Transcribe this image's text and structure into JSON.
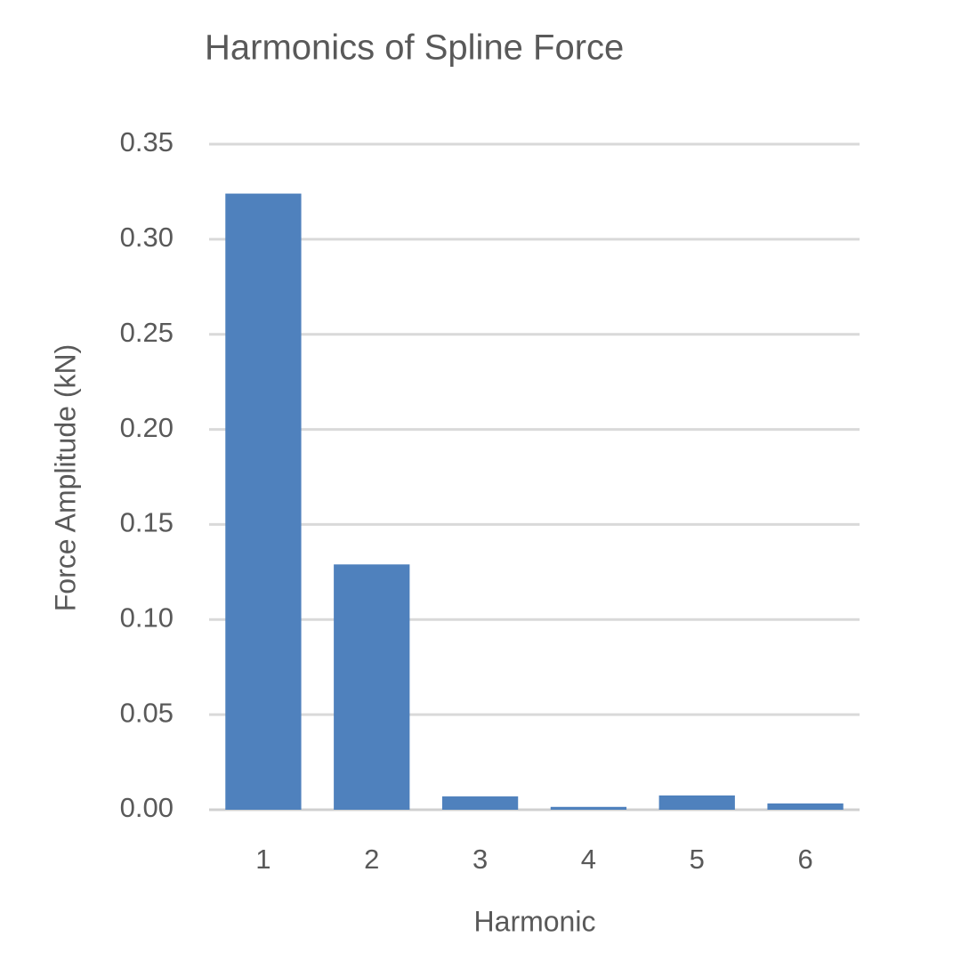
{
  "chart_data": {
    "type": "bar",
    "title": "Harmonics of Spline Force",
    "x_label": "Harmonic",
    "y_label": "Force Amplitude (kN)",
    "categories": [
      "1",
      "2",
      "3",
      "4",
      "5",
      "6"
    ],
    "values": [
      0.324,
      0.129,
      0.007,
      0.0015,
      0.0075,
      0.0033
    ],
    "color": "#4f81bd",
    "ylim": [
      0,
      0.35
    ],
    "yticks": [
      {
        "value": 0,
        "label": "0.00"
      },
      {
        "value": 0.05,
        "label": "0.05"
      },
      {
        "value": 0.1,
        "label": "0.10"
      },
      {
        "value": 0.15,
        "label": "0.15"
      },
      {
        "value": 0.2,
        "label": "0.20"
      },
      {
        "value": 0.25,
        "label": "0.25"
      },
      {
        "value": 0.3,
        "label": "0.30"
      },
      {
        "value": 0.35,
        "label": "0.35"
      }
    ],
    "grid": true
  }
}
